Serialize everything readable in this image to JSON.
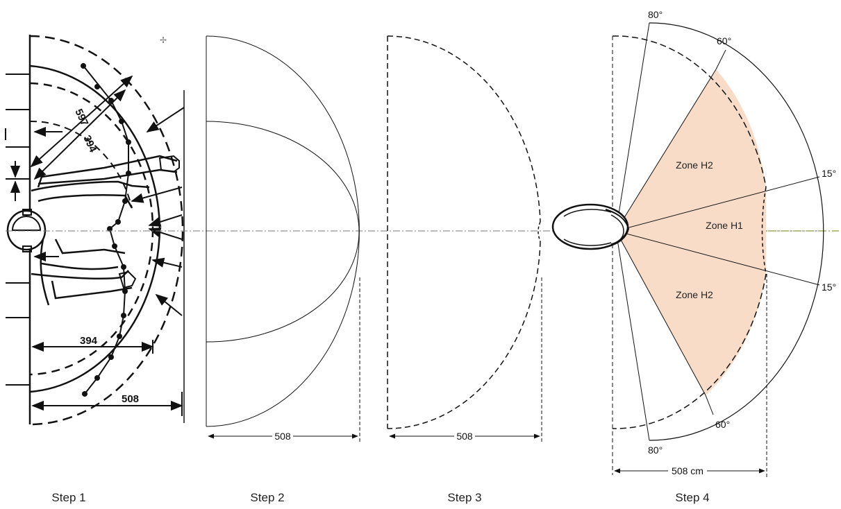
{
  "steps": [
    {
      "label": "Step 1"
    },
    {
      "label": "Step 2"
    },
    {
      "label": "Step 3"
    },
    {
      "label": "Step 4"
    }
  ],
  "step1": {
    "dim_597": "597",
    "dim_394_diag": "394",
    "dim_394": "394",
    "dim_508": "508"
  },
  "step2": {
    "dim": "508"
  },
  "step3": {
    "dim": "508"
  },
  "step4": {
    "dim": "508 cm",
    "zones": {
      "h1": "Zone H1",
      "h2_top": "Zone H2",
      "h2_bottom": "Zone H2"
    },
    "angles": {
      "top_80": "80°",
      "top_60": "60°",
      "top_15": "15°",
      "bottom_15": "15°",
      "bottom_60": "60°",
      "bottom_80": "80°"
    },
    "zone_color": "#f8dcc8"
  }
}
